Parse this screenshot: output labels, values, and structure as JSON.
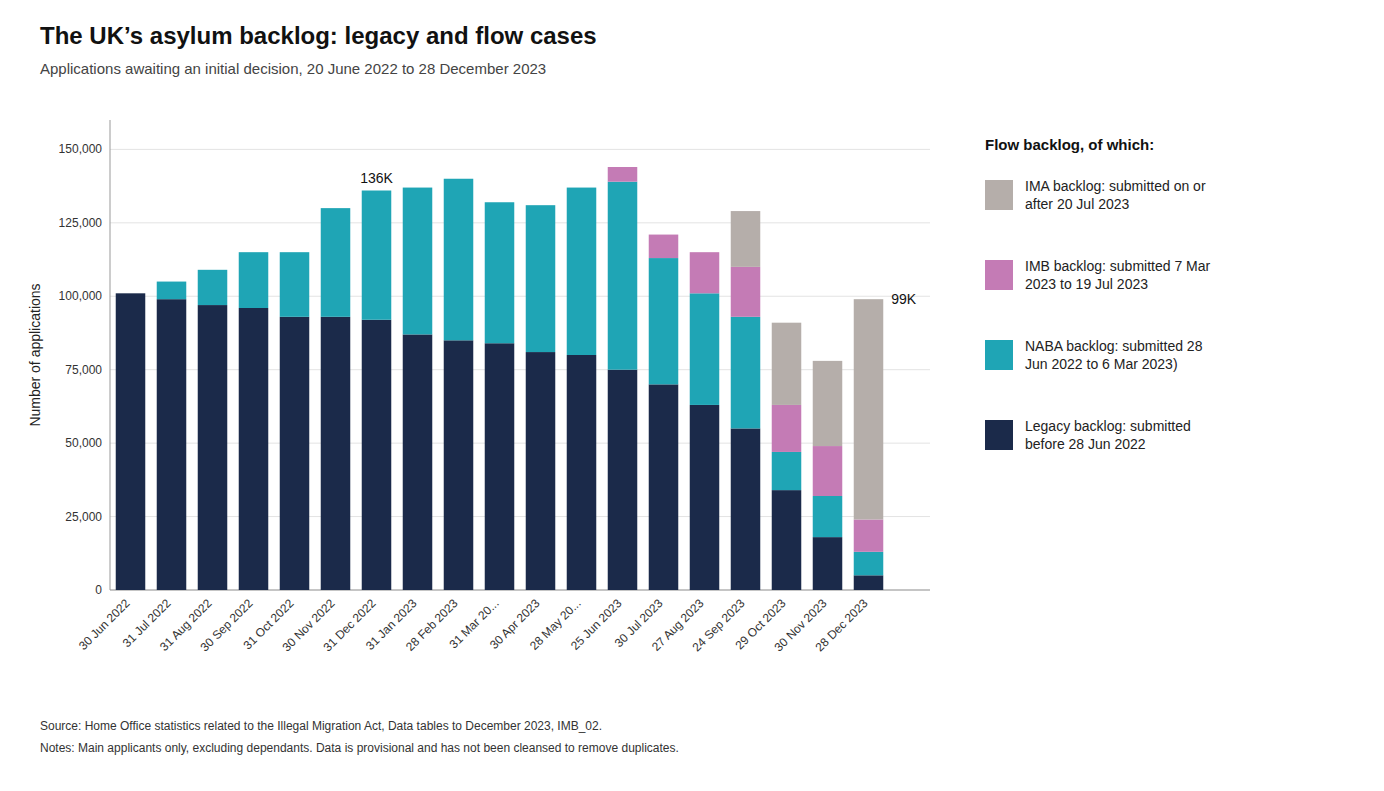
{
  "chart_data": {
    "type": "bar",
    "stacked": true,
    "title": "The UK’s asylum backlog: legacy and flow cases",
    "subtitle": "Applications awaiting an initial decision, 20 June 2022 to 28 December 2023",
    "ylabel": "Number of applications",
    "categories": [
      "30 Jun 2022",
      "31 Jul 2022",
      "31 Aug 2022",
      "30 Sep 2022",
      "31 Oct 2022",
      "30 Nov 2022",
      "31 Dec 2022",
      "31 Jan 2023",
      "28 Feb 2023",
      "31 Mar 20...",
      "30 Apr 2023",
      "28 May 20...",
      "25 Jun 2023",
      "30 Jul 2023",
      "27 Aug 2023",
      "24 Sep 2023",
      "29 Oct 2023",
      "30 Nov 2023",
      "28 Dec 2023"
    ],
    "series": [
      {
        "name": "Legacy backlog: submitted\nbefore 28 Jun 2022",
        "color": "#1b2a4a",
        "values": [
          101000,
          99000,
          97000,
          96000,
          93000,
          93000,
          92000,
          87000,
          85000,
          84000,
          81000,
          80000,
          75000,
          70000,
          63000,
          55000,
          34000,
          18000,
          5000
        ]
      },
      {
        "name": "NABA backlog: submitted 28\nJun 2022 to 6 Mar 2023)",
        "color": "#1fa5b5",
        "values": [
          0,
          6000,
          12000,
          19000,
          22000,
          37000,
          44000,
          50000,
          55000,
          48000,
          50000,
          57000,
          64000,
          43000,
          38000,
          38000,
          13000,
          14000,
          8000
        ]
      },
      {
        "name": "IMB backlog: submitted 7 Mar\n2023 to 19 Jul 2023",
        "color": "#c47bb5",
        "values": [
          0,
          0,
          0,
          0,
          0,
          0,
          0,
          0,
          0,
          0,
          0,
          0,
          5000,
          8000,
          14000,
          17000,
          16000,
          17000,
          11000
        ]
      },
      {
        "name": "IMA backlog: submitted on or\nafter 20 Jul 2023",
        "color": "#b5aeaa",
        "values": [
          0,
          0,
          0,
          0,
          0,
          0,
          0,
          0,
          0,
          0,
          0,
          0,
          0,
          0,
          0,
          19000,
          28000,
          29000,
          75000
        ]
      }
    ],
    "annotations": [
      {
        "text": "136K",
        "category": "31 Dec 2022",
        "value": 136000
      },
      {
        "text": "99K",
        "category": "28 Dec 2023",
        "value": 99000
      }
    ],
    "legend": "right",
    "legend_title": "Flow backlog, of which:",
    "source": "Source: Home Office statistics related to the Illegal Migration Act, Data tables to December 2023, IMB_02.",
    "notes": "Notes: Main applicants only, excluding dependants. Data is provisional and has not been cleansed to remove duplicates.",
    "ylim": [
      0,
      160000
    ],
    "yticks": [
      0,
      {
        "value": 25000,
        "label": "25,000"
      },
      {
        "value": 50000,
        "label": "50,000"
      },
      {
        "value": 75000,
        "label": "75,000"
      },
      {
        "value": 100000,
        "label": "100,000"
      },
      {
        "value": 125000,
        "label": "125,000"
      },
      {
        "value": 150000,
        "label": "150,000"
      }
    ],
    "grid": true
  }
}
